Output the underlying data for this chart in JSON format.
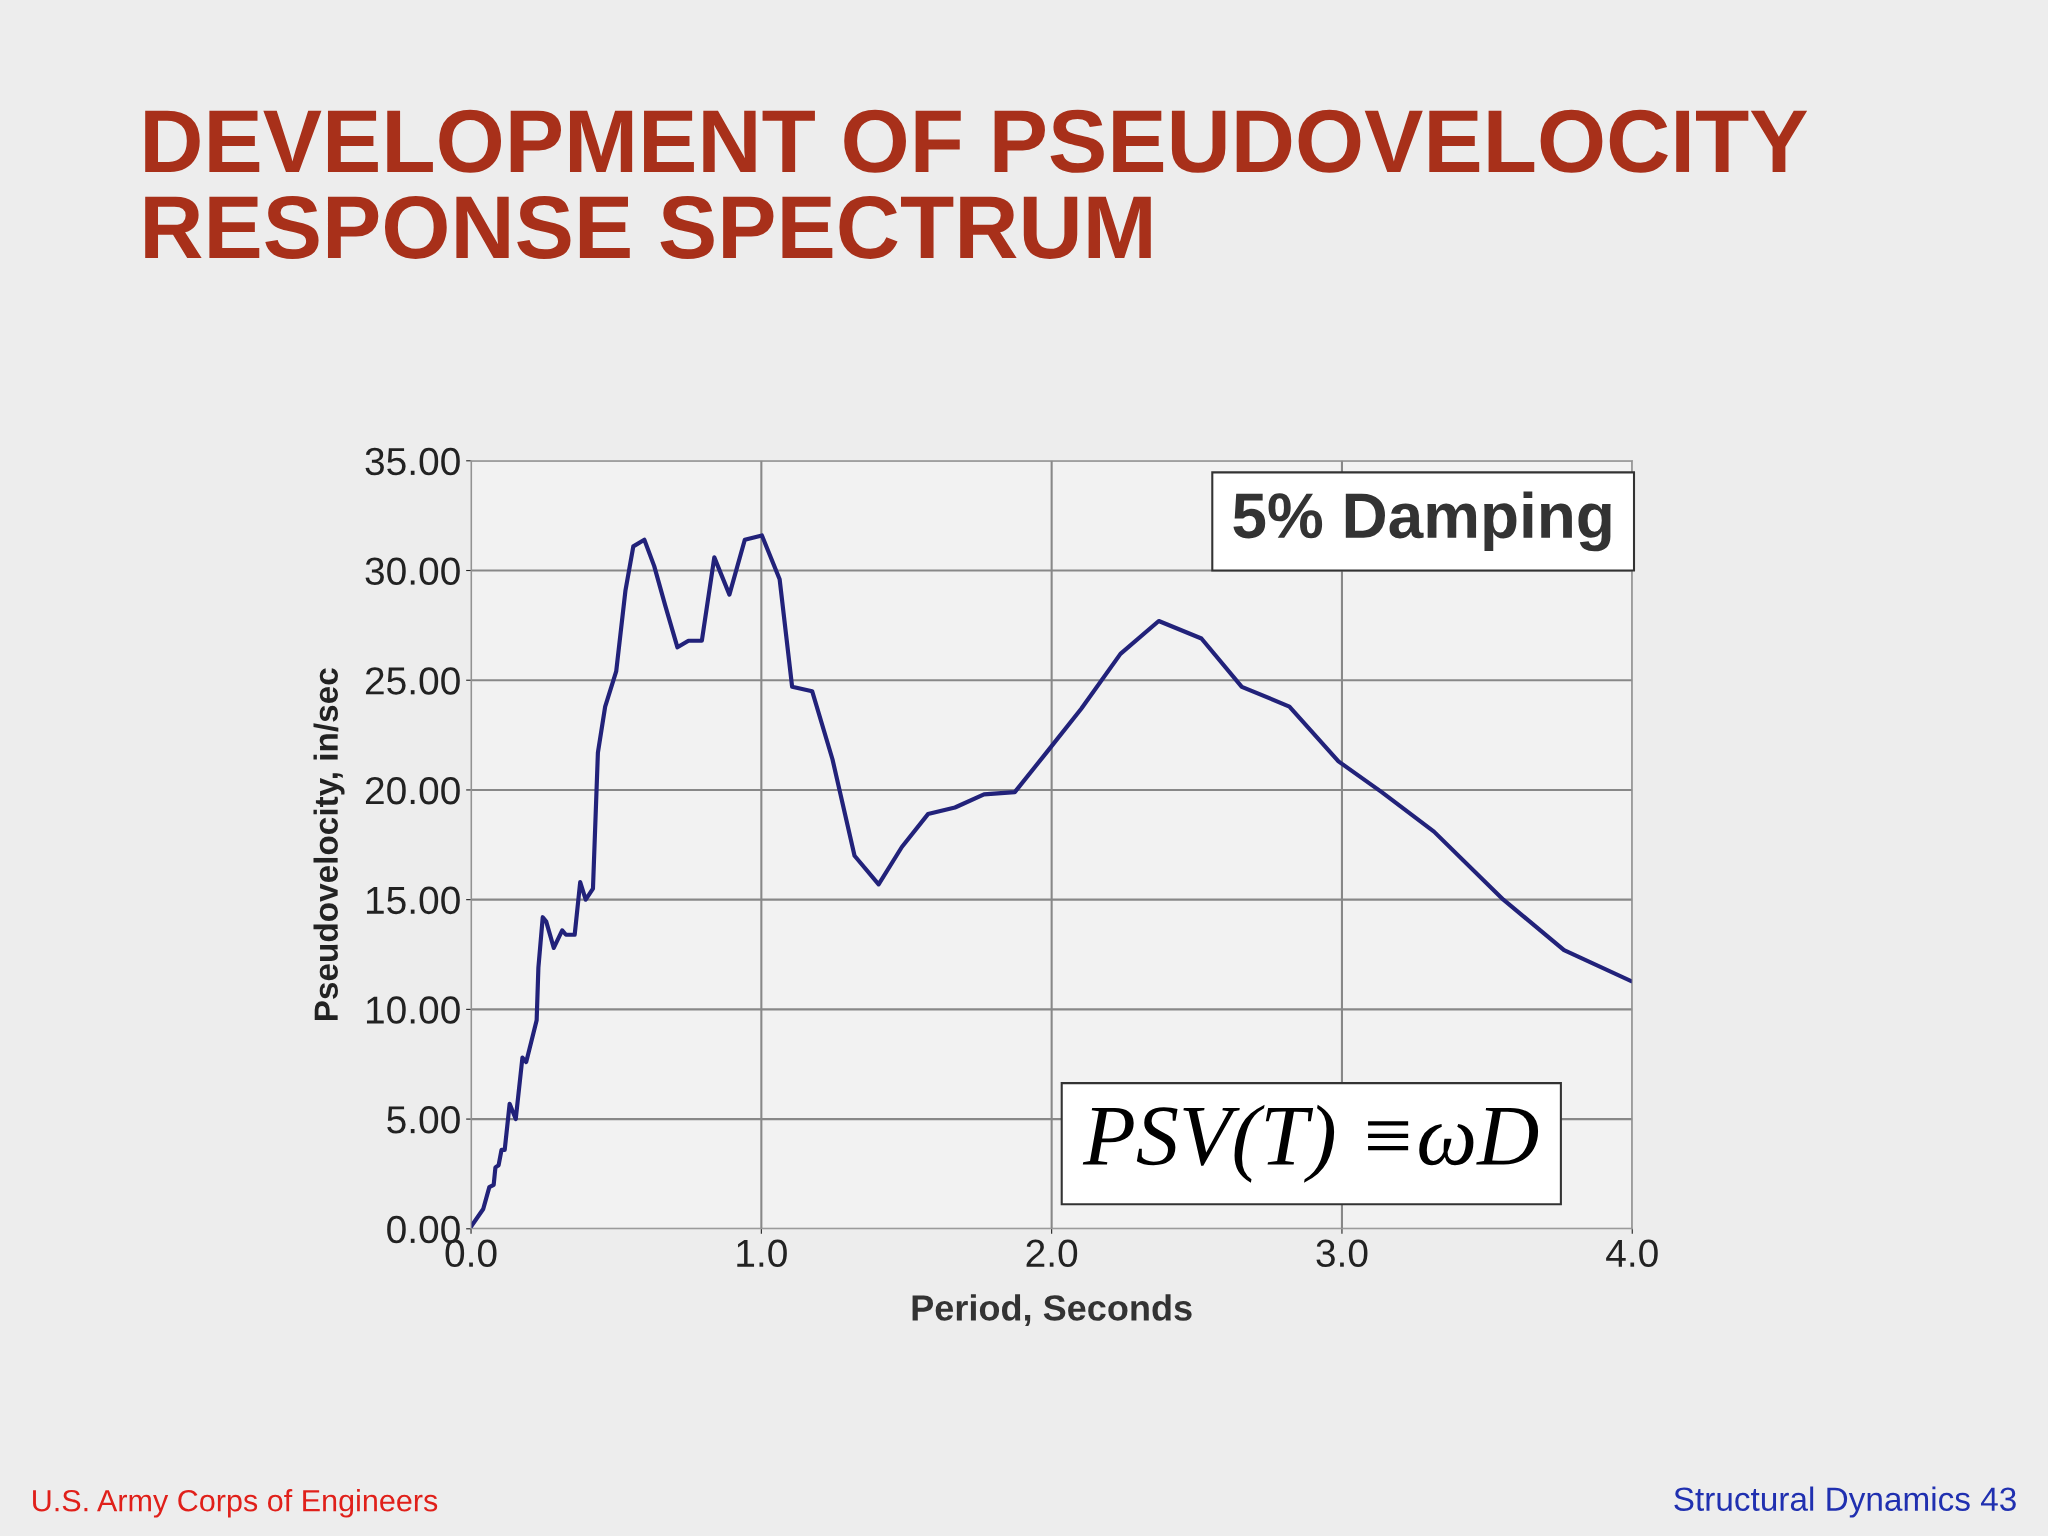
{
  "chart_data": {
    "type": "line",
    "title": "DEVELOPMENT OF PSEUDOVELOCITY\nRESPONSE SPECTRUM",
    "xlabel": "Period, Seconds",
    "ylabel": "Pseudovelocity, in/sec",
    "series": [
      {
        "color": "#22227a",
        "x": [
          0,
          0.042,
          0.063,
          0.078,
          0.084,
          0.095,
          0.105,
          0.116,
          0.133,
          0.154,
          0.177,
          0.19,
          0.209,
          0.226,
          0.232,
          0.247,
          0.259,
          0.285,
          0.314,
          0.327,
          0.357,
          0.376,
          0.395,
          0.42,
          0.437,
          0.462,
          0.5,
          0.532,
          0.559,
          0.597,
          0.631,
          0.669,
          0.711,
          0.749,
          0.795,
          0.838,
          0.89,
          0.943,
          1.002,
          1.063,
          1.106,
          1.175,
          1.245,
          1.321,
          1.404,
          1.484,
          1.574,
          1.667,
          1.767,
          1.873,
          1.982,
          2.102,
          2.237,
          2.369,
          2.516,
          2.655,
          2.819,
          2.988,
          3.137,
          3.317,
          3.556,
          3.765,
          3.994
        ],
        "values": [
          0.1,
          0.9,
          1.9,
          2.0,
          2.8,
          2.9,
          3.6,
          3.6,
          5.7,
          5.0,
          7.8,
          7.6,
          8.6,
          9.5,
          11.9,
          14.2,
          14.0,
          12.8,
          13.6,
          13.4,
          13.4,
          15.8,
          15.0,
          15.5,
          21.7,
          23.8,
          25.4,
          29.1,
          31.1,
          31.4,
          30.2,
          28.4,
          26.5,
          26.8,
          26.8,
          30.6,
          28.9,
          31.4,
          31.6,
          29.6,
          24.7,
          24.5,
          21.4,
          17.0,
          15.7,
          17.4,
          18.9,
          19.2,
          19.8,
          19.9,
          21.7,
          23.7,
          26.2,
          27.7,
          26.9,
          24.7,
          23.8,
          21.3,
          19.9,
          18.1,
          15.0,
          12.7,
          11.3
        ]
      }
    ],
    "xlim": [
      0,
      4
    ],
    "xticks": [
      {
        "value": 0,
        "label": "0.0"
      },
      {
        "value": 1,
        "label": "1.0"
      },
      {
        "value": 2,
        "label": "2.0"
      },
      {
        "value": 3,
        "label": "3.0"
      },
      {
        "value": 4,
        "label": "4.0"
      }
    ],
    "ylim": [
      0,
      35
    ],
    "yticks": [
      {
        "value": 0,
        "label": "0.00"
      },
      {
        "value": 5,
        "label": "5.00"
      },
      {
        "value": 10,
        "label": "10.00"
      },
      {
        "value": 15,
        "label": "15.00"
      },
      {
        "value": 20,
        "label": "20.00"
      },
      {
        "value": 25,
        "label": "25.00"
      },
      {
        "value": 30,
        "label": "30.00"
      },
      {
        "value": 35,
        "label": "35.00"
      }
    ],
    "grid": true,
    "marker": "none",
    "line_style": "solid",
    "annotations": [
      "5% Damping",
      "PSV(T) ≡ωD",
      "U.S. Army Corps of Engineers",
      "Structural Dynamics 43"
    ]
  }
}
